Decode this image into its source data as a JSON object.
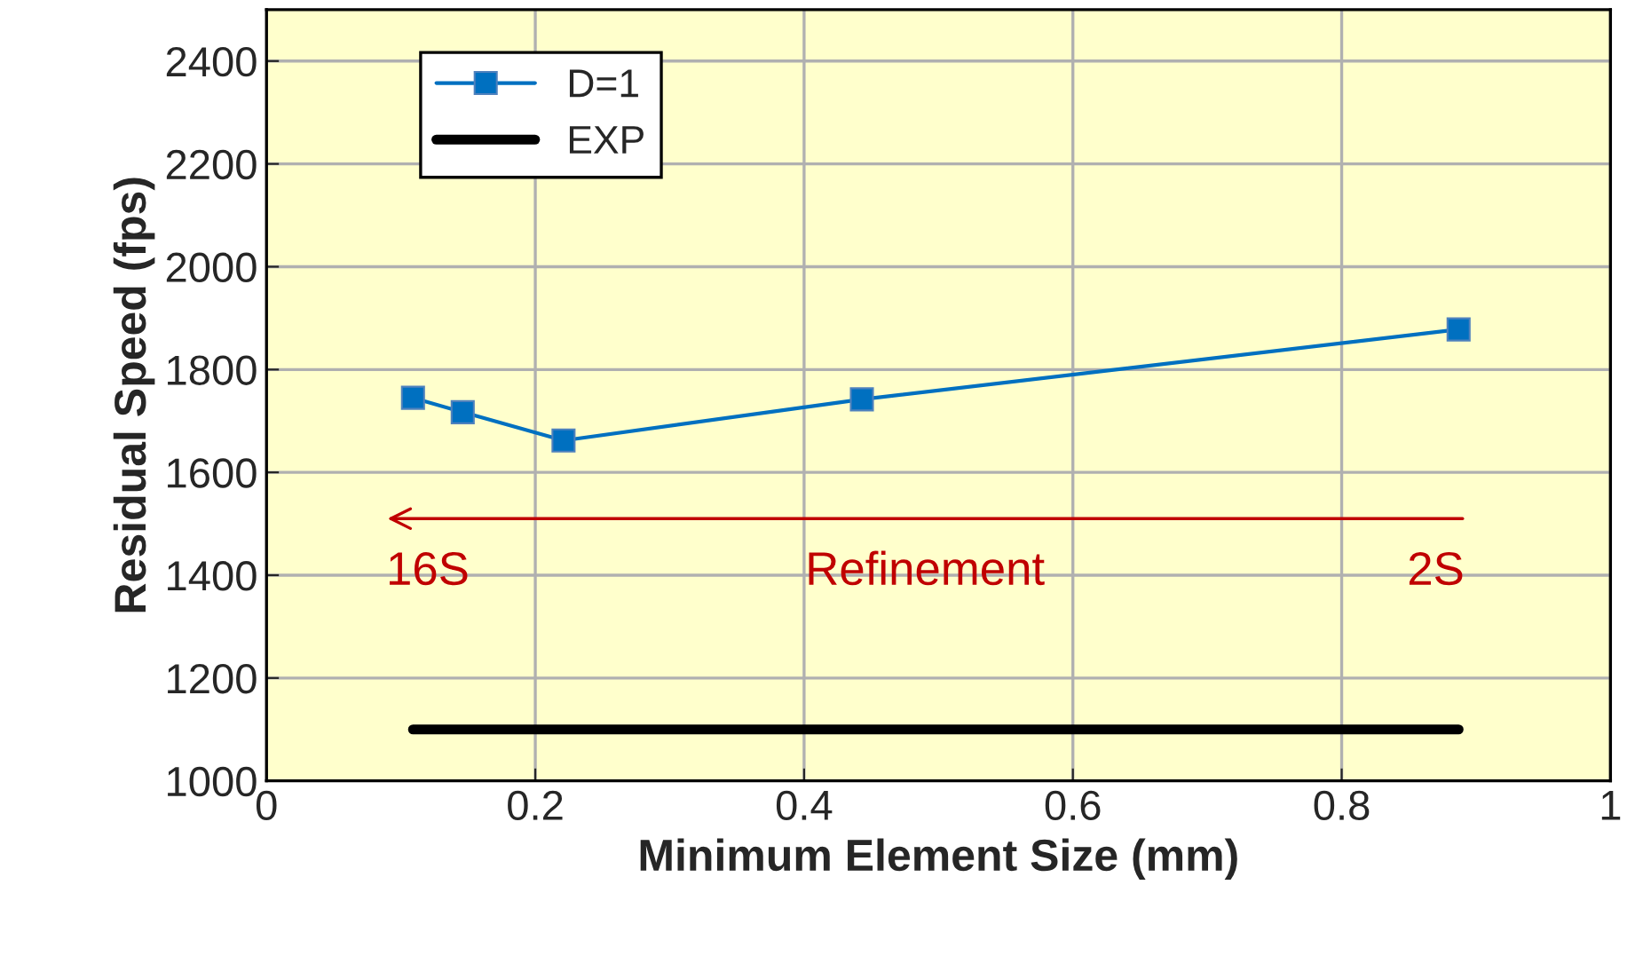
{
  "chart_data": {
    "type": "line",
    "xlabel": "Minimum Element Size (mm)",
    "ylabel": "Residual Speed (fps)",
    "xlim": [
      0,
      1
    ],
    "xticks": [
      0,
      0.2,
      0.4,
      0.6,
      0.8,
      1
    ],
    "ylim": [
      1000,
      2500
    ],
    "yticks": [
      1000,
      1200,
      1400,
      1600,
      1800,
      2000,
      2200,
      2400
    ],
    "grid": true,
    "legend": "top left",
    "series": [
      {
        "name": "D=1",
        "color": "#0070c0",
        "marker": "square",
        "x": [
          0.109,
          0.146,
          0.221,
          0.443,
          0.887
        ],
        "values": [
          1745,
          1717,
          1662,
          1742,
          1878
        ]
      },
      {
        "name": "EXP",
        "color": "#000000",
        "marker": "none",
        "x": [
          0.109,
          0.887
        ],
        "values": [
          1100,
          1100
        ]
      }
    ],
    "annotations": [
      "16S",
      "Refinement",
      "2S"
    ]
  }
}
